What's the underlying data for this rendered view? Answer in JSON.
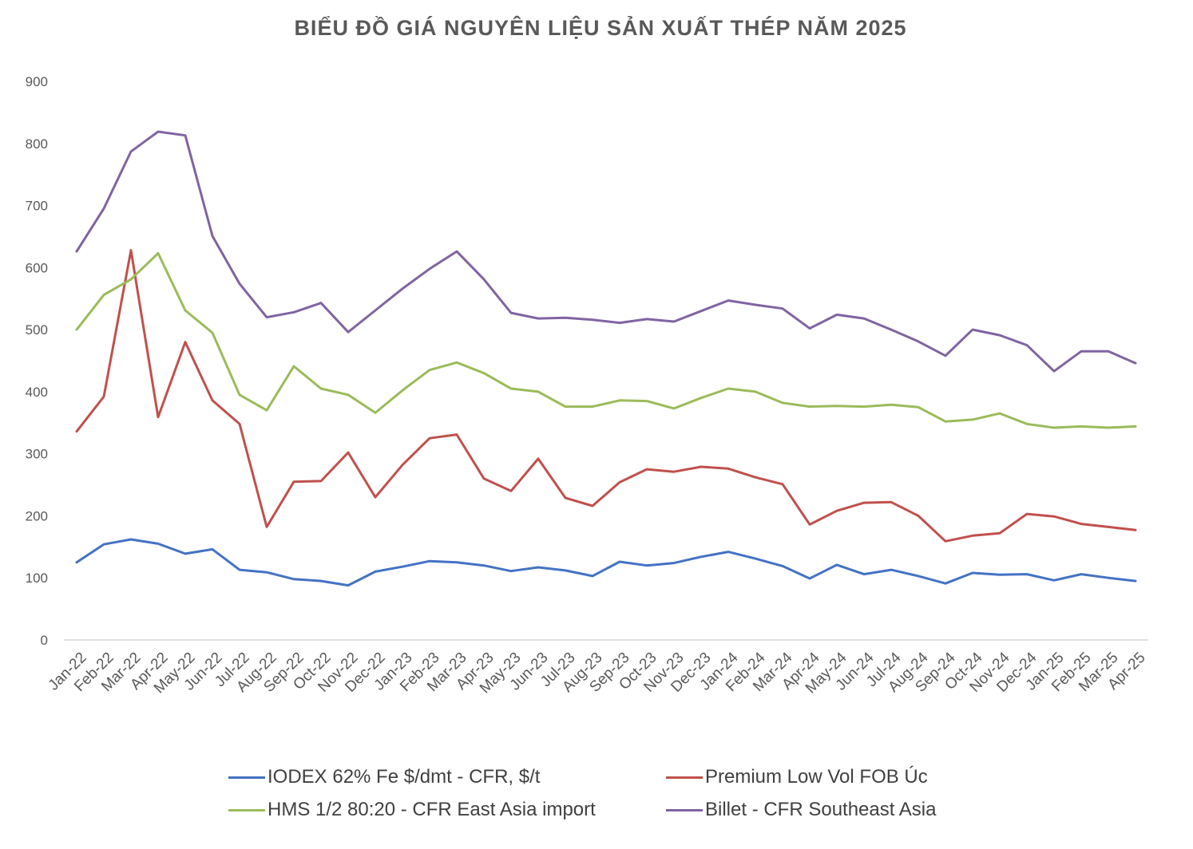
{
  "chart_data": {
    "type": "line",
    "title": "BIỂU ĐỒ GIÁ NGUYÊN LIỆU SẢN XUẤT THÉP NĂM 2025",
    "xlabel": "",
    "ylabel": "",
    "ylim": [
      0,
      900
    ],
    "yticks": [
      "0",
      "100",
      "200",
      "300",
      "400",
      "500",
      "600",
      "700",
      "800",
      "900"
    ],
    "grid": false,
    "legend_position": "bottom",
    "categories": [
      "Jan-22",
      "Feb-22",
      "Mar-22",
      "Apr-22",
      "May-22",
      "Jun-22",
      "Jul-22",
      "Aug-22",
      "Sep-22",
      "Oct-22",
      "Nov-22",
      "Dec-22",
      "Jan-23",
      "Feb-23",
      "Mar-23",
      "Apr-23",
      "May-23",
      "Jun-23",
      "Jul-23",
      "Aug-23",
      "Sep-23",
      "Oct-23",
      "Nov-23",
      "Dec-23",
      "Jan-24",
      "Feb-24",
      "Mar-24",
      "Apr-24",
      "May-24",
      "Jun-24",
      "Jul-24",
      "Aug-24",
      "Sep-24",
      "Oct-24",
      "Nov-24",
      "Dec-24",
      "Jan-25",
      "Feb-25",
      "Mar-25",
      "Apr-25"
    ],
    "series": [
      {
        "name": "IODEX 62% Fe $/dmt - CFR, $/t",
        "color": "#4472C4",
        "values": [
          125,
          154,
          162,
          155,
          139,
          146,
          113,
          109,
          98,
          95,
          88,
          110,
          118,
          127,
          125,
          120,
          111,
          117,
          112,
          103,
          126,
          120,
          124,
          134,
          142,
          131,
          119,
          99,
          121,
          106,
          113,
          103,
          91,
          108,
          105,
          106,
          96,
          106,
          100,
          95
        ]
      },
      {
        "name": "Premium Low Vol FOB Úc",
        "color": "#C0504D",
        "values": [
          336,
          392,
          628,
          359,
          480,
          386,
          348,
          182,
          255,
          256,
          302,
          230,
          282,
          325,
          331,
          260,
          240,
          292,
          229,
          216,
          254,
          275,
          271,
          279,
          276,
          262,
          251,
          186,
          208,
          221,
          222,
          200,
          159,
          168,
          172,
          203,
          199,
          187,
          182,
          177
        ]
      },
      {
        "name": "HMS 1/2 80:20 - CFR East Asia import",
        "color": "#9BBB59",
        "values": [
          500,
          556,
          581,
          623,
          531,
          495,
          395,
          370,
          441,
          405,
          395,
          366,
          402,
          435,
          447,
          430,
          405,
          400,
          376,
          376,
          386,
          385,
          373,
          390,
          405,
          400,
          382,
          376,
          377,
          376,
          379,
          375,
          352,
          355,
          365,
          348,
          342,
          344,
          342,
          344
        ]
      },
      {
        "name": "Billet - CFR Southeast Asia",
        "color": "#8064A2",
        "values": [
          626,
          695,
          787,
          819,
          813,
          651,
          574,
          520,
          528,
          543,
          496,
          531,
          566,
          598,
          626,
          581,
          527,
          518,
          519,
          516,
          511,
          517,
          513,
          530,
          547,
          540,
          534,
          502,
          524,
          518,
          500,
          481,
          458,
          500,
          491,
          475,
          433,
          465,
          465,
          446
        ]
      }
    ]
  }
}
